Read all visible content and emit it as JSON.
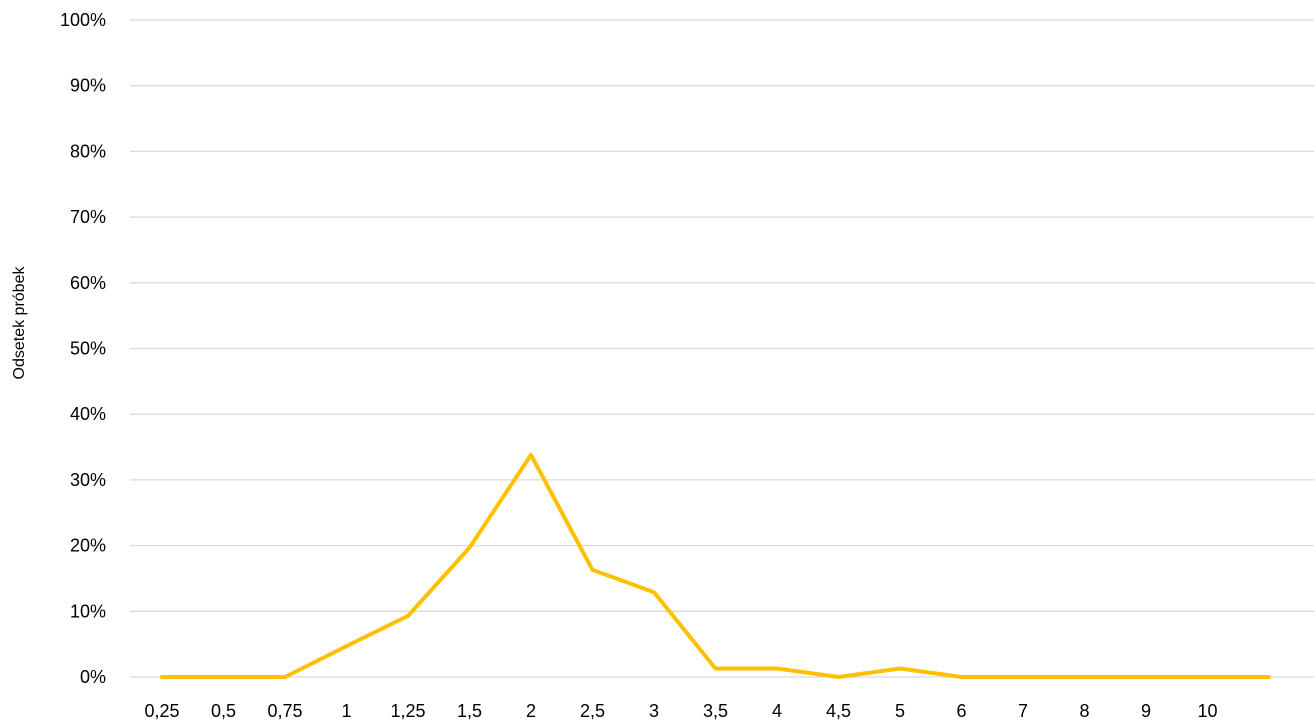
{
  "chart_data": {
    "type": "line",
    "title": "",
    "xlabel": "",
    "ylabel": "Odsetek próbek",
    "categories": [
      "0,25",
      "0,5",
      "0,75",
      "1",
      "1,25",
      "1,5",
      "2",
      "2,5",
      "3",
      "3,5",
      "4",
      "4,5",
      "5",
      "6",
      "7",
      "8",
      "9",
      "10",
      ""
    ],
    "series": [
      {
        "values": [
          0,
          0,
          0,
          4.7,
          9.3,
          19.7,
          33.8,
          16.3,
          12.9,
          1.3,
          1.3,
          0,
          1.3,
          0,
          0,
          0,
          0,
          0,
          0
        ]
      }
    ],
    "ylim": [
      0,
      100
    ],
    "yticks": [
      0,
      10,
      20,
      30,
      40,
      50,
      60,
      70,
      80,
      90,
      100
    ],
    "ytick_labels": [
      "0%",
      "10%",
      "20%",
      "30%",
      "40%",
      "50%",
      "60%",
      "70%",
      "80%",
      "90%",
      "100%"
    ],
    "grid": true,
    "legend": "none",
    "colors": {
      "line": "#FFC000",
      "grid": "#D9D9D9",
      "text": "#000000"
    }
  }
}
